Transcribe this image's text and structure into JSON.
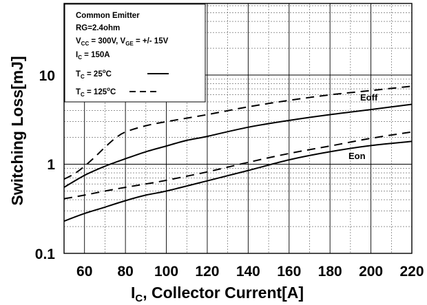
{
  "chart_data": {
    "type": "line",
    "xlabel_main": "I",
    "xlabel_sub": "C",
    "xlabel_rest": ", Collector Current[A]",
    "ylabel": "Switching Loss[mJ]",
    "xlim": [
      50,
      220
    ],
    "ylim": [
      0.1,
      60
    ],
    "yscale": "log",
    "grid": true,
    "x_ticks": [
      "60",
      "80",
      "100",
      "120",
      "140",
      "160",
      "180",
      "200",
      "220"
    ],
    "y_ticks": [
      "0.1",
      "1",
      "10"
    ],
    "legend": {
      "line1": "Common Emitter",
      "line2": "RG=2.4ohm",
      "line3": {
        "v1": "V",
        "s1": "CC",
        "m": " = 300V, V",
        "s2": "GE",
        "e": " = +/- 15V"
      },
      "line4": {
        "v": "I",
        "s": "C",
        "e": " = 150A"
      },
      "entry1": {
        "v": "T",
        "s": "C",
        "e": " = 25",
        "deg": "o",
        "c": "C"
      },
      "entry2": {
        "v": "T",
        "s": "C",
        "e": " = 125",
        "deg": "o",
        "c": "C"
      },
      "placement": "top-left"
    },
    "annotations": [
      "Eoff",
      "Eon"
    ],
    "series": [
      {
        "curve": "Eoff",
        "style": "solid",
        "x": [
          50,
          60,
          70,
          80,
          90,
          100,
          110,
          120,
          140,
          160,
          180,
          200,
          220
        ],
        "values": [
          0.55,
          0.75,
          0.95,
          1.15,
          1.38,
          1.6,
          1.85,
          2.05,
          2.6,
          3.1,
          3.6,
          4.1,
          4.7
        ]
      },
      {
        "curve": "Eoff",
        "style": "dashed",
        "x": [
          50,
          55,
          60,
          65,
          70,
          75,
          80,
          90,
          100,
          120,
          140,
          160,
          180,
          200,
          220
        ],
        "values": [
          0.68,
          0.78,
          0.95,
          1.2,
          1.55,
          1.95,
          2.3,
          2.7,
          3.0,
          3.6,
          4.4,
          5.2,
          6.0,
          6.7,
          7.5
        ]
      },
      {
        "curve": "Eon",
        "style": "solid",
        "x": [
          50,
          60,
          70,
          80,
          90,
          100,
          120,
          140,
          160,
          180,
          200,
          220
        ],
        "values": [
          0.23,
          0.28,
          0.33,
          0.39,
          0.45,
          0.5,
          0.65,
          0.85,
          1.12,
          1.38,
          1.62,
          1.8
        ]
      },
      {
        "curve": "Eon",
        "style": "dashed",
        "x": [
          50,
          60,
          70,
          80,
          90,
          100,
          120,
          140,
          160,
          180,
          200,
          220
        ],
        "values": [
          0.41,
          0.45,
          0.5,
          0.55,
          0.6,
          0.66,
          0.82,
          1.05,
          1.32,
          1.6,
          1.95,
          2.3
        ]
      }
    ]
  }
}
